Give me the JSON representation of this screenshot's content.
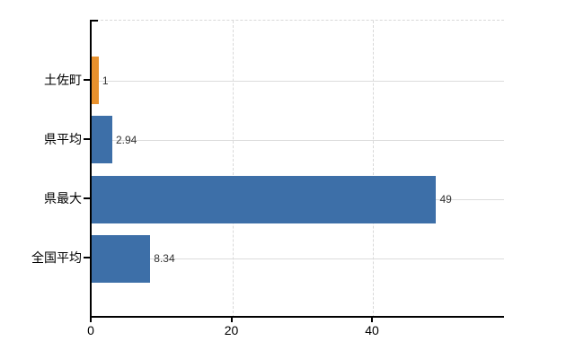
{
  "chart_data": {
    "type": "bar",
    "orientation": "horizontal",
    "title": "",
    "xlabel": "",
    "ylabel": "",
    "categories": [
      "土佐町",
      "県平均",
      "県最大",
      "全国平均"
    ],
    "values": [
      1,
      2.94,
      49,
      8.34
    ],
    "value_labels": [
      "1",
      "2.94",
      "49",
      "8.34"
    ],
    "bar_colors": [
      "#e8912d",
      "#3d6fa8",
      "#3d6fa8",
      "#3d6fa8"
    ],
    "x_ticks": [
      0,
      20,
      40
    ],
    "x_tick_labels": [
      "0",
      "20",
      "40"
    ],
    "xlim": [
      0,
      58.65
    ],
    "grid": true,
    "legend_position": "none",
    "colors": {
      "bar_default": "#3d6fa8",
      "bar_highlight": "#e8912d",
      "gridline": "#dcdcdc",
      "axis": "#000000",
      "value_label_text": "#333333",
      "tick_label_text": "#000000",
      "background": "#ffffff"
    }
  }
}
